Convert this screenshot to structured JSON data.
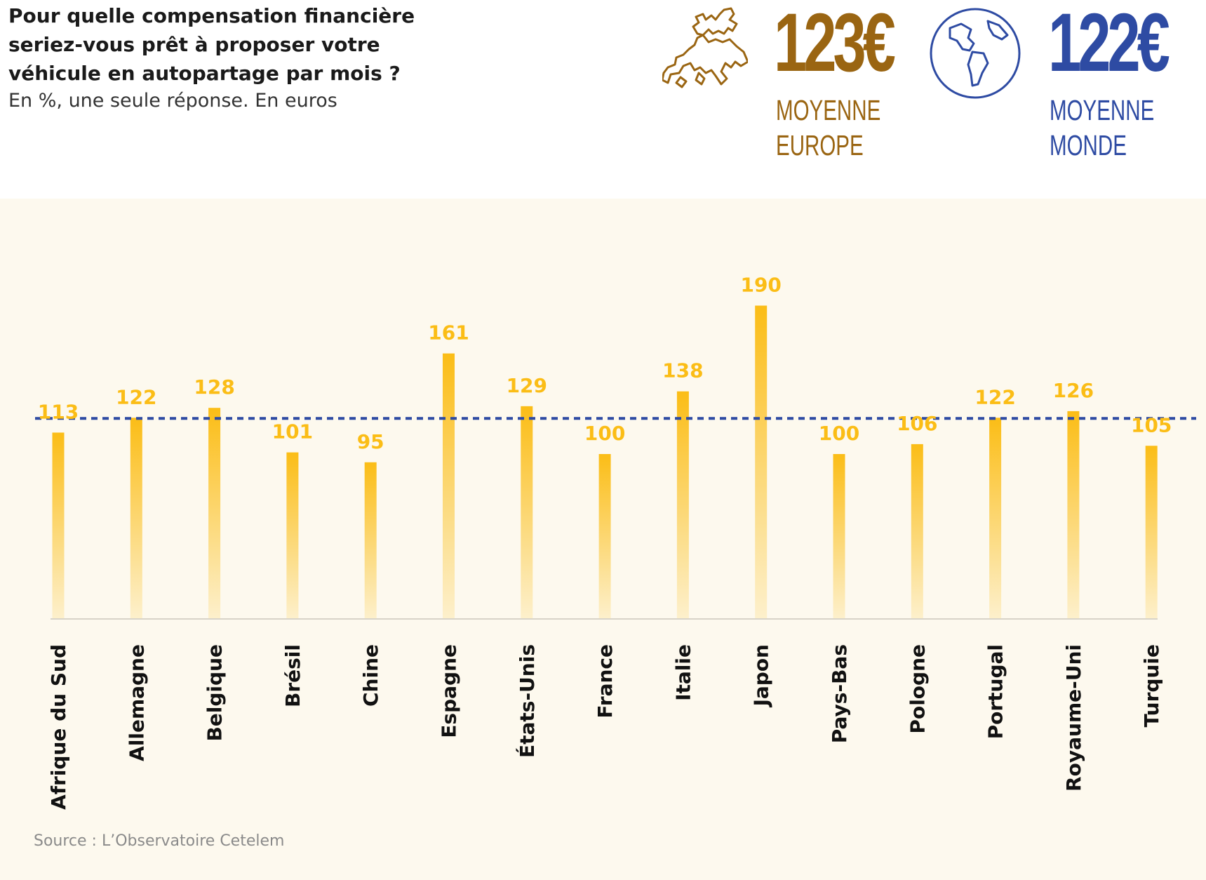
{
  "title": "Pour quelle compensation financière seriez-vous prêt à proposer votre véhicule en autopartage par mois ?",
  "subtitle": "En %, une seule réponse. En euros",
  "kpis": {
    "europe": {
      "value": "123€",
      "label_line1": "MOYENNE",
      "label_line2": "EUROPE",
      "icon": "europe-map-icon",
      "color": "#9a6512"
    },
    "world": {
      "value": "122€",
      "label_line1": "MOYENNE",
      "label_line2": "MONDE",
      "icon": "globe-icon",
      "color": "#2e4ba3"
    }
  },
  "source": "Source : L’Observatoire Cetelem",
  "colors": {
    "bar_top": "#fbbd16",
    "bar_bottom": "#fdf0cc",
    "value_label": "#fbbd16",
    "reference_line": "#2e4ba3",
    "panel_background": "#fdf9ee"
  },
  "chart_data": {
    "type": "bar",
    "title": "Pour quelle compensation financière seriez-vous prêt à proposer votre véhicule en autopartage par mois ?",
    "xlabel": "",
    "ylabel": "",
    "ylim": [
      0,
      190
    ],
    "grid": false,
    "categories": [
      "Afrique du Sud",
      "Allemagne",
      "Belgique",
      "Brésil",
      "Chine",
      "Espagne",
      "États-Unis",
      "France",
      "Italie",
      "Japon",
      "Pays-Bas",
      "Pologne",
      "Portugal",
      "Royaume-Uni",
      "Turquie"
    ],
    "values": [
      113,
      122,
      128,
      101,
      95,
      161,
      129,
      100,
      138,
      190,
      100,
      106,
      122,
      126,
      105
    ],
    "value_labels": [
      "113",
      "122",
      "128",
      "101",
      "95",
      "161",
      "129",
      "100",
      "138",
      "190",
      "100",
      "106",
      "122",
      "126",
      "105"
    ],
    "reference_line": {
      "value": 122,
      "label": "Moyenne monde",
      "style": "dashed"
    }
  }
}
